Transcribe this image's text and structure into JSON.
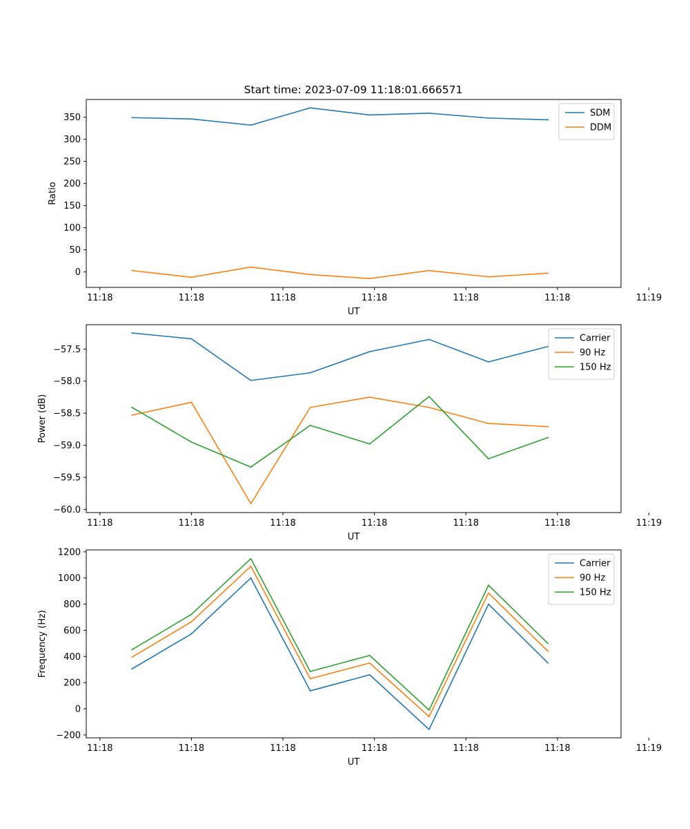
{
  "figure": {
    "title": "Start time: 2023-07-09 11:18:01.666571"
  },
  "chart_data": [
    {
      "type": "line",
      "title": "Start time: 2023-07-09 11:18:01.666571",
      "xlabel": "UT",
      "ylabel": "Ratio",
      "x": [
        1,
        2,
        3,
        4,
        5,
        6,
        7,
        8
      ],
      "xlim": [
        0.23,
        9.23
      ],
      "x_ticks": [
        0.46,
        2.0,
        3.54,
        5.08,
        6.62,
        8.16,
        9.7
      ],
      "x_tick_labels": [
        "11:18",
        "11:18",
        "11:18",
        "11:18",
        "11:18",
        "11:18",
        "11:19"
      ],
      "ylim": [
        -35,
        390
      ],
      "y_ticks": [
        0,
        50,
        100,
        150,
        200,
        250,
        300,
        350
      ],
      "y_tick_labels": [
        "0",
        "50",
        "100",
        "150",
        "200",
        "250",
        "300",
        "350"
      ],
      "legend": "top-right",
      "series": [
        {
          "name": "SDM",
          "color": "#1f77b4",
          "values": [
            349,
            346,
            332,
            371,
            355,
            359,
            348,
            344
          ]
        },
        {
          "name": "DDM",
          "color": "#ff7f0e",
          "values": [
            3,
            -12,
            11,
            -6,
            -15,
            3,
            -11,
            -3
          ]
        }
      ]
    },
    {
      "type": "line",
      "title": "",
      "xlabel": "UT",
      "ylabel": "Power (dB)",
      "x": [
        1,
        2,
        3,
        4,
        5,
        6,
        7,
        8
      ],
      "xlim": [
        0.23,
        9.23
      ],
      "x_ticks": [
        0.46,
        2.0,
        3.54,
        5.08,
        6.62,
        8.16,
        9.7
      ],
      "x_tick_labels": [
        "11:18",
        "11:18",
        "11:18",
        "11:18",
        "11:18",
        "11:18",
        "11:19"
      ],
      "ylim": [
        -60.05,
        -57.12
      ],
      "y_ticks": [
        -60.0,
        -59.5,
        -59.0,
        -58.5,
        -58.0,
        -57.5
      ],
      "y_tick_labels": [
        "−60.0",
        "−59.5",
        "−59.0",
        "−58.5",
        "−58.0",
        "−57.5"
      ],
      "legend": "top-right",
      "series": [
        {
          "name": "Carrier",
          "color": "#1f77b4",
          "values": [
            -57.25,
            -57.34,
            -57.99,
            -57.87,
            -57.54,
            -57.35,
            -57.7,
            -57.46
          ]
        },
        {
          "name": "90 Hz",
          "color": "#ff7f0e",
          "values": [
            -58.53,
            -58.33,
            -59.91,
            -58.41,
            -58.25,
            -58.41,
            -58.66,
            -58.71
          ]
        },
        {
          "name": "150 Hz",
          "color": "#2ca02c",
          "values": [
            -58.41,
            -58.95,
            -59.34,
            -58.69,
            -58.98,
            -58.24,
            -59.21,
            -58.88
          ]
        }
      ]
    },
    {
      "type": "line",
      "title": "",
      "xlabel": "UT",
      "ylabel": "Frequency (Hz)",
      "x": [
        1,
        2,
        3,
        4,
        5,
        6,
        7,
        8
      ],
      "xlim": [
        0.23,
        9.23
      ],
      "x_ticks": [
        0.46,
        2.0,
        3.54,
        5.08,
        6.62,
        8.16,
        9.7
      ],
      "x_tick_labels": [
        "11:18",
        "11:18",
        "11:18",
        "11:18",
        "11:18",
        "11:18",
        "11:19"
      ],
      "ylim": [
        -222,
        1215
      ],
      "y_ticks": [
        -200,
        0,
        200,
        400,
        600,
        800,
        1000,
        1200
      ],
      "y_tick_labels": [
        "−200",
        "0",
        "200",
        "400",
        "600",
        "800",
        "1000",
        "1200"
      ],
      "legend": "top-right",
      "series": [
        {
          "name": "Carrier",
          "color": "#1f77b4",
          "values": [
            305,
            573,
            1000,
            137,
            260,
            -158,
            800,
            350
          ]
        },
        {
          "name": "90 Hz",
          "color": "#ff7f0e",
          "values": [
            395,
            665,
            1090,
            230,
            350,
            -60,
            885,
            440
          ]
        },
        {
          "name": "150 Hz",
          "color": "#2ca02c",
          "values": [
            452,
            722,
            1148,
            285,
            408,
            -10,
            945,
            500
          ]
        }
      ]
    }
  ]
}
